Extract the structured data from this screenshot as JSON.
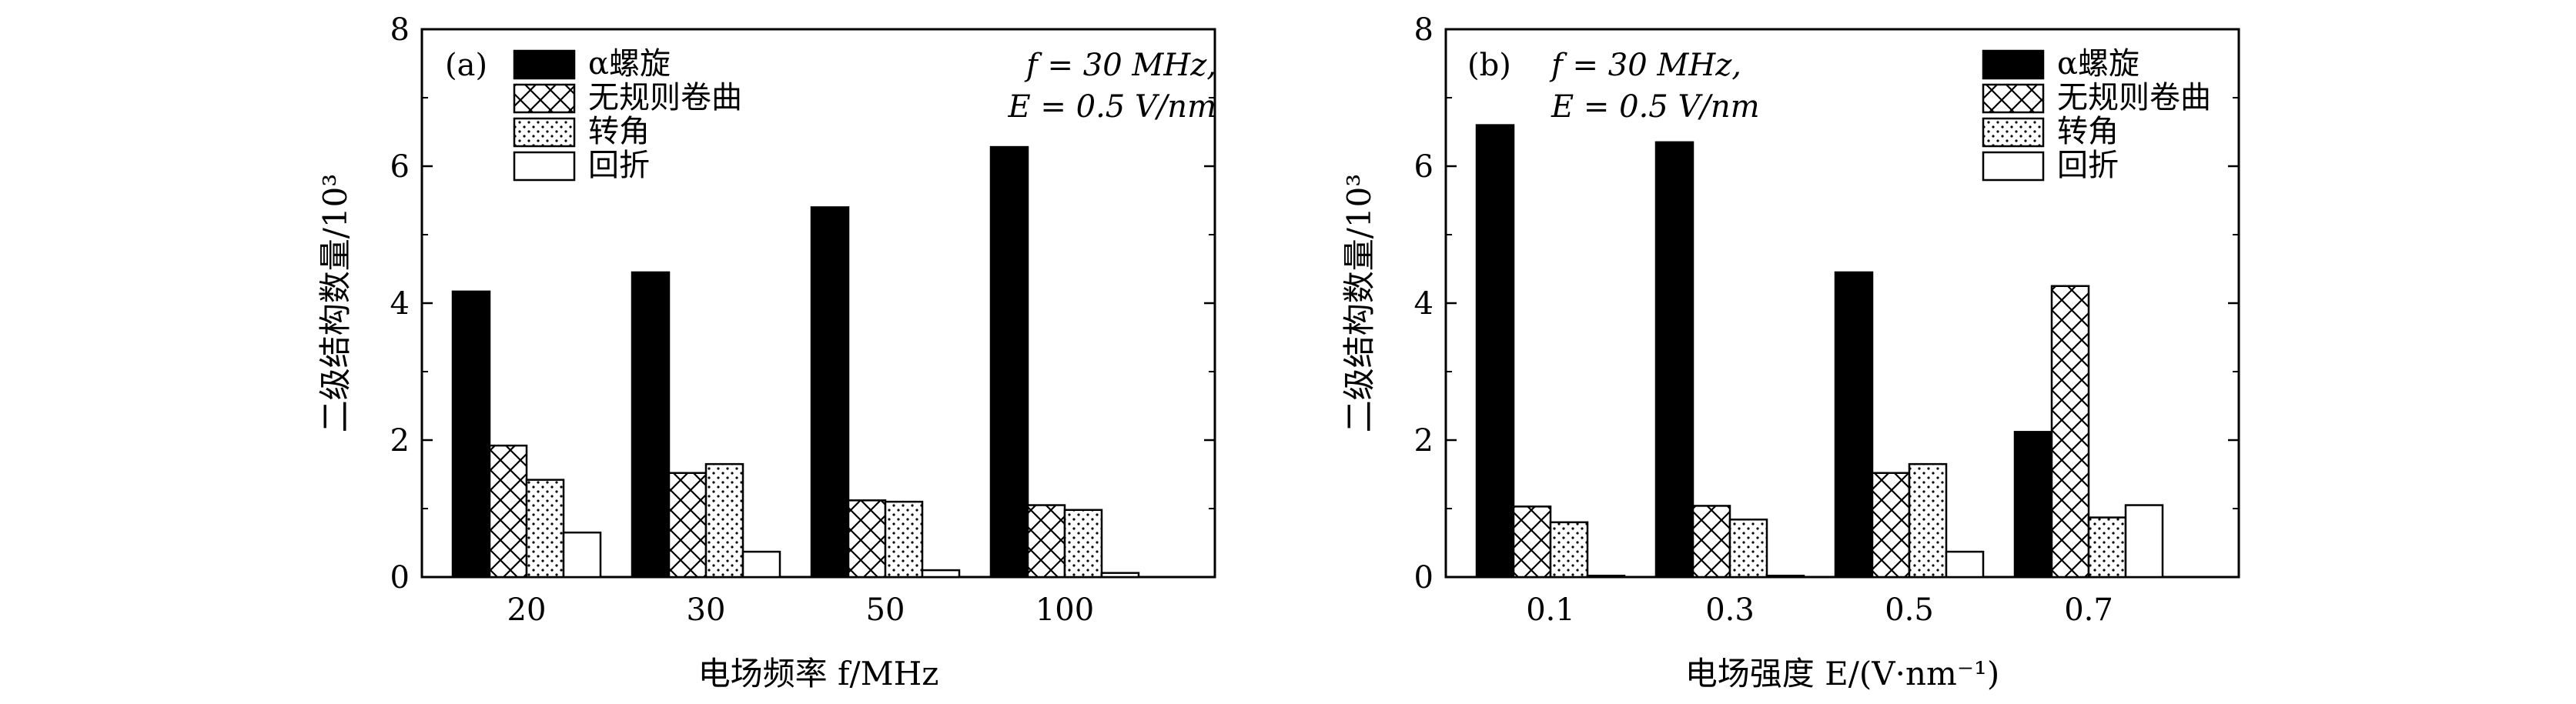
{
  "figure_labels": [
    "(a)",
    "(b)"
  ],
  "legend": [
    {
      "label": "α螺旋",
      "pattern": "solid"
    },
    {
      "label": "无规则卷曲",
      "pattern": "cross"
    },
    {
      "label": "转角",
      "pattern": "dots"
    },
    {
      "label": "回折",
      "pattern": "empty"
    }
  ],
  "colors": {
    "bar_fill": "#000000",
    "background": "#ffffff"
  },
  "chart_data": [
    {
      "type": "bar",
      "panel": "(a)",
      "title": "",
      "annotation": [
        "f = 30 MHz,",
        "E = 0.5 V/nm"
      ],
      "xlabel": "电场频率 f/MHz",
      "ylabel": "二级结构数量/10³",
      "categories": [
        "20",
        "30",
        "50",
        "100"
      ],
      "ylim": [
        0,
        8
      ],
      "yticks": [
        "0",
        "2",
        "4",
        "6",
        "8"
      ],
      "series": [
        {
          "name": "α螺旋",
          "values": [
            4.17,
            4.45,
            5.4,
            6.28
          ]
        },
        {
          "name": "无规则卷曲",
          "values": [
            1.92,
            1.52,
            1.12,
            1.05
          ]
        },
        {
          "name": "转角",
          "values": [
            1.42,
            1.65,
            1.1,
            0.98
          ]
        },
        {
          "name": "回折",
          "values": [
            0.65,
            0.37,
            0.1,
            0.06
          ]
        }
      ]
    },
    {
      "type": "bar",
      "panel": "(b)",
      "title": "",
      "annotation": [
        "f = 30 MHz,",
        "E = 0.5 V/nm"
      ],
      "xlabel": "电场强度 E/(V·nm⁻¹)",
      "ylabel": "二级结构数量/10³",
      "categories": [
        "0.1",
        "0.3",
        "0.5",
        "0.7"
      ],
      "ylim": [
        0,
        8
      ],
      "yticks": [
        "0",
        "2",
        "4",
        "6",
        "8"
      ],
      "series": [
        {
          "name": "α螺旋",
          "values": [
            6.6,
            6.35,
            4.45,
            2.12
          ]
        },
        {
          "name": "无规则卷曲",
          "values": [
            1.03,
            1.04,
            1.52,
            4.25
          ]
        },
        {
          "name": "转角",
          "values": [
            0.8,
            0.84,
            1.65,
            0.87
          ]
        },
        {
          "name": "回折",
          "values": [
            0.02,
            0.02,
            0.37,
            1.05
          ]
        }
      ]
    }
  ]
}
